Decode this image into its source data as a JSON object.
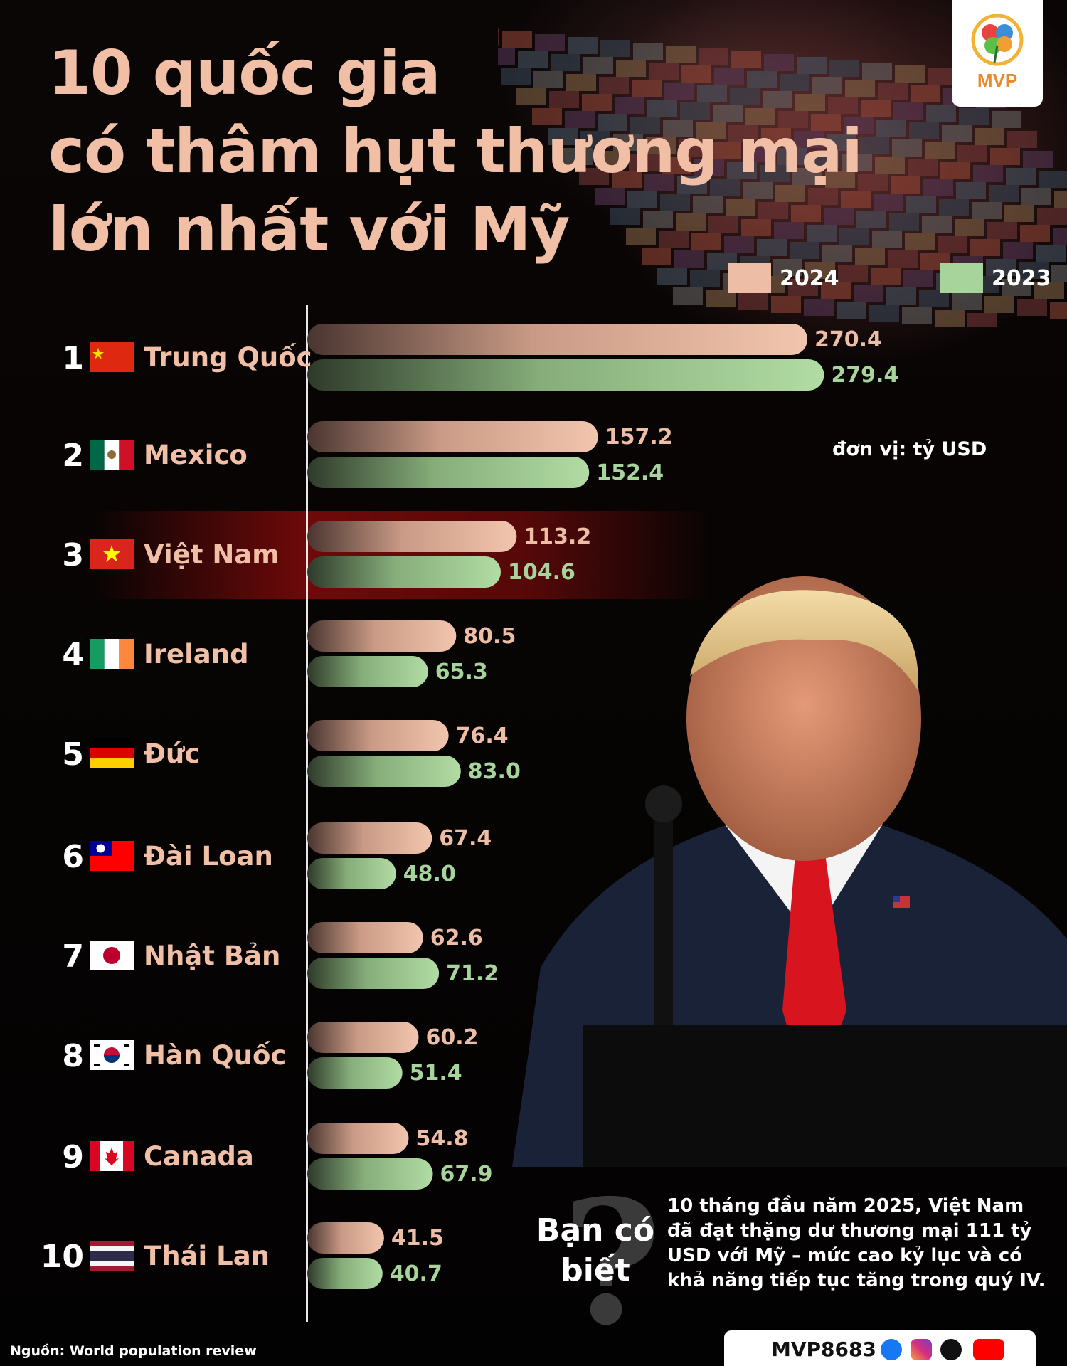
{
  "title": {
    "line1": "10 quốc gia",
    "line2": "có thâm hụt thương mại",
    "line3": "lớn nhất với Mỹ"
  },
  "logo": {
    "text": "MVP"
  },
  "unit_note": "đơn vị: tỷ USD",
  "colors": {
    "series_2024": "#edbea5",
    "series_2023": "#a7d49b",
    "title": "#f0bfa5",
    "highlight": "#8a0b0b"
  },
  "chart_data": {
    "type": "bar",
    "orientation": "horizontal",
    "title": "10 quốc gia có thâm hụt thương mại lớn nhất với Mỹ",
    "unit": "tỷ USD",
    "legend_position": "top-right",
    "grid": false,
    "xlim": [
      0,
      300
    ],
    "categories": [
      {
        "rank": "1",
        "name": "Trung Quốc",
        "flag": "china-flag"
      },
      {
        "rank": "2",
        "name": "Mexico",
        "flag": "mexico-flag"
      },
      {
        "rank": "3",
        "name": "Việt Nam",
        "flag": "vietnam-flag",
        "highlight": true
      },
      {
        "rank": "4",
        "name": "Ireland",
        "flag": "ireland-flag"
      },
      {
        "rank": "5",
        "name": "Đức",
        "flag": "germany-flag"
      },
      {
        "rank": "6",
        "name": "Đài Loan",
        "flag": "taiwan-flag"
      },
      {
        "rank": "7",
        "name": "Nhật Bản",
        "flag": "japan-flag"
      },
      {
        "rank": "8",
        "name": "Hàn Quốc",
        "flag": "korea-flag"
      },
      {
        "rank": "9",
        "name": "Canada",
        "flag": "canada-flag"
      },
      {
        "rank": "10",
        "name": "Thái Lan",
        "flag": "thailand-flag"
      }
    ],
    "series": [
      {
        "name": "2024",
        "values": [
          270.4,
          157.2,
          113.2,
          80.5,
          76.4,
          67.4,
          62.6,
          60.2,
          54.8,
          41.5
        ],
        "labels": [
          "270.4",
          "157.2",
          "113.2",
          "80.5",
          "76.4",
          "67.4",
          "62.6",
          "60.2",
          "54.8",
          "41.5"
        ]
      },
      {
        "name": "2023",
        "values": [
          279.4,
          152.4,
          104.6,
          65.3,
          83.0,
          48.0,
          71.2,
          51.4,
          67.9,
          40.7
        ],
        "labels": [
          "279.4",
          "152.4",
          "104.6",
          "65.3",
          "83.0",
          "48.0",
          "71.2",
          "51.4",
          "67.9",
          "40.7"
        ]
      }
    ]
  },
  "did_you_know": {
    "label_line1": "Bạn có",
    "label_line2": "biết",
    "text": "10 tháng đầu năm 2025, Việt Nam đã đạt thặng dư thương mại 111 tỷ USD với Mỹ – mức cao kỷ lục và có khả năng tiếp tục tăng trong quý IV."
  },
  "source": "Nguồn: World population review",
  "social": {
    "handle": "MVP8683",
    "icons": [
      "facebook-icon",
      "instagram-icon",
      "tiktok-icon",
      "youtube-icon"
    ]
  }
}
